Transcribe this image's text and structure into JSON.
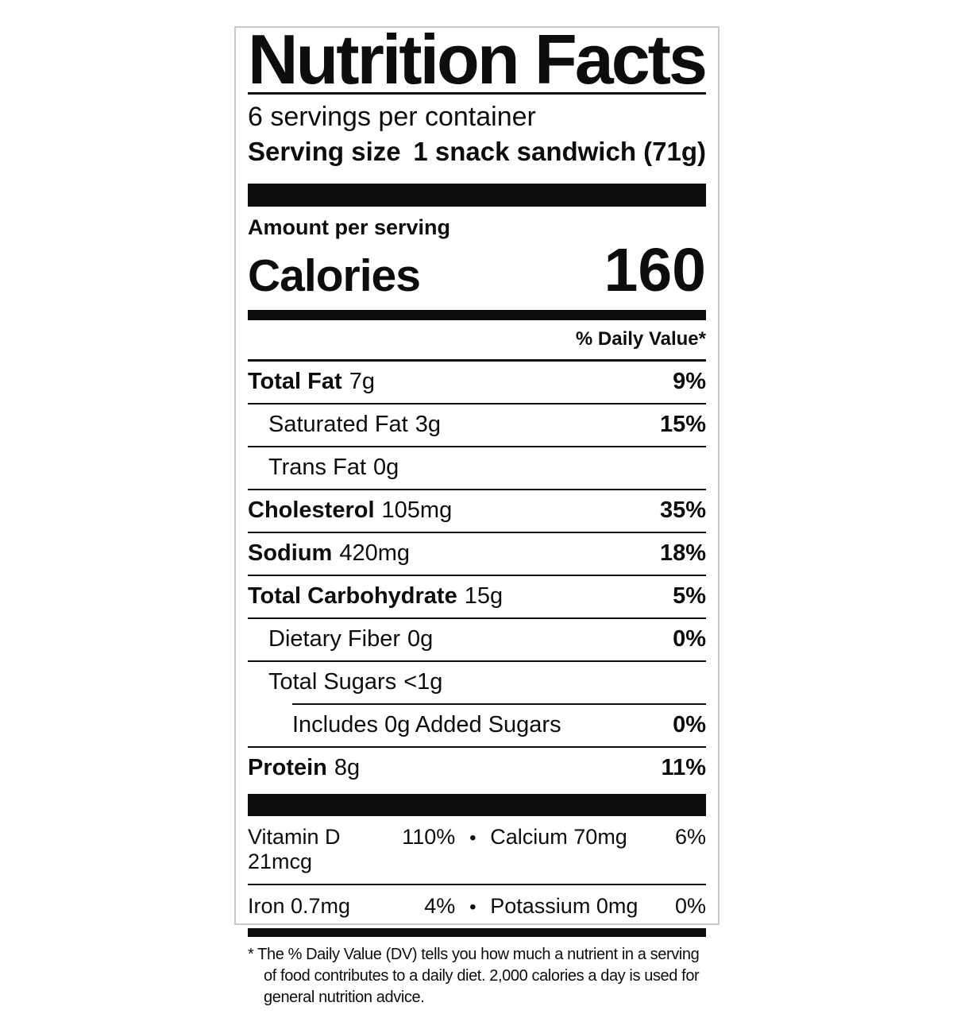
{
  "label": {
    "title": "Nutrition Facts",
    "servings_per_container": "6 servings per container",
    "serving_size_label": "Serving size",
    "serving_size_value": "1 snack sandwich (71g)",
    "amount_per_serving": "Amount per serving",
    "calories_label": "Calories",
    "calories_value": "160",
    "daily_value_header": "% Daily Value*",
    "nutrients": [
      {
        "name": "Total Fat",
        "amount": "7g",
        "dv": "9%"
      },
      {
        "name": "Saturated Fat",
        "amount": "3g",
        "dv": "15%"
      },
      {
        "name": "Trans Fat",
        "amount": "0g",
        "dv": ""
      },
      {
        "name": "Cholesterol",
        "amount": "105mg",
        "dv": "35%"
      },
      {
        "name": "Sodium",
        "amount": "420mg",
        "dv": "18%"
      },
      {
        "name": "Total Carbohydrate",
        "amount": "15g",
        "dv": "5%"
      },
      {
        "name": "Dietary Fiber",
        "amount": "0g",
        "dv": "0%"
      },
      {
        "name": "Total Sugars",
        "amount": "<1g",
        "dv": ""
      },
      {
        "name": "Includes 0g Added Sugars",
        "amount": "",
        "dv": "0%"
      },
      {
        "name": "Protein",
        "amount": "8g",
        "dv": "11%"
      }
    ],
    "micronutrients": [
      {
        "left_name": "Vitamin D 21mcg",
        "left_dv": "110%",
        "right_name": "Calcium 70mg",
        "right_dv": "6%"
      },
      {
        "left_name": "Iron 0.7mg",
        "left_dv": "4%",
        "right_name": "Potassium 0mg",
        "right_dv": "0%"
      }
    ],
    "bullet": "•",
    "footnote": "* The % Daily Value (DV) tells you how much a nutrient in a serving of food contributes to a daily diet. 2,000 calories a day is used for general nutrition advice.",
    "colors": {
      "text": "#0d0d0d",
      "background": "#ffffff",
      "border": "#c9c9c9"
    }
  }
}
